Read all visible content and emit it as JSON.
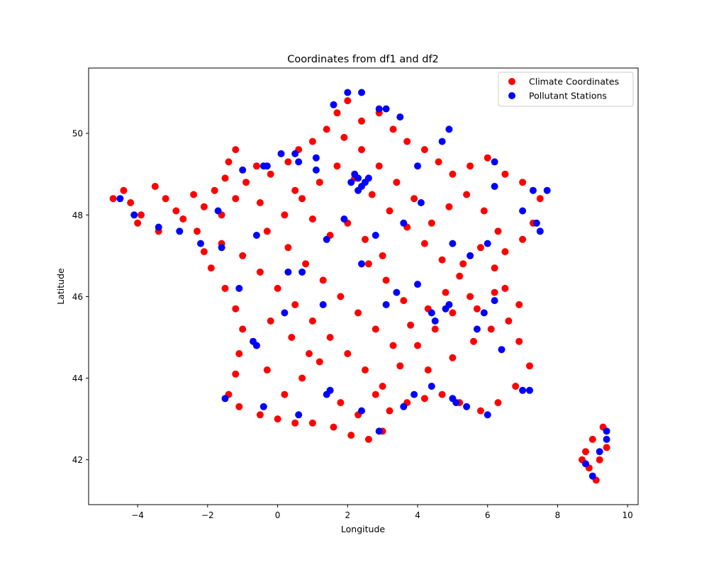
{
  "chart_data": {
    "type": "scatter",
    "title": "Coordinates from df1 and df2",
    "xlabel": "Longitude",
    "ylabel": "Latitude",
    "xlim": [
      -5.4,
      10.3
    ],
    "ylim": [
      40.9,
      51.6
    ],
    "xticks": [
      -4,
      -2,
      0,
      2,
      4,
      6,
      8,
      10
    ],
    "yticks": [
      42,
      44,
      46,
      48,
      50
    ],
    "grid": false,
    "legend_position": "top-right",
    "series": [
      {
        "name": "Climate Coordinates",
        "color": "#ff0000",
        "points": [
          [
            -4.7,
            48.4
          ],
          [
            -4.4,
            48.6
          ],
          [
            -4.2,
            48.3
          ],
          [
            -3.9,
            48.0
          ],
          [
            -4.0,
            47.8
          ],
          [
            -3.5,
            48.7
          ],
          [
            -3.2,
            48.4
          ],
          [
            -2.9,
            48.1
          ],
          [
            -3.4,
            47.6
          ],
          [
            -2.7,
            47.9
          ],
          [
            -2.4,
            48.5
          ],
          [
            -2.1,
            48.2
          ],
          [
            -1.8,
            48.6
          ],
          [
            -2.3,
            47.6
          ],
          [
            -1.6,
            48.0
          ],
          [
            -1.2,
            48.4
          ],
          [
            -0.9,
            48.8
          ],
          [
            -1.4,
            49.3
          ],
          [
            -1.2,
            49.6
          ],
          [
            -0.6,
            49.2
          ],
          [
            -0.2,
            49.0
          ],
          [
            0.3,
            49.3
          ],
          [
            0.6,
            49.6
          ],
          [
            1.0,
            49.8
          ],
          [
            1.4,
            50.1
          ],
          [
            1.7,
            50.5
          ],
          [
            2.0,
            50.8
          ],
          [
            2.4,
            50.3
          ],
          [
            2.9,
            50.5
          ],
          [
            3.3,
            50.1
          ],
          [
            3.7,
            49.8
          ],
          [
            4.2,
            49.6
          ],
          [
            4.6,
            49.3
          ],
          [
            5.0,
            49.0
          ],
          [
            5.5,
            49.2
          ],
          [
            6.0,
            49.4
          ],
          [
            6.5,
            49.0
          ],
          [
            7.0,
            48.8
          ],
          [
            7.5,
            48.4
          ],
          [
            7.3,
            47.8
          ],
          [
            7.0,
            47.4
          ],
          [
            6.5,
            47.1
          ],
          [
            6.2,
            46.7
          ],
          [
            6.5,
            46.2
          ],
          [
            6.9,
            45.8
          ],
          [
            6.6,
            45.4
          ],
          [
            6.9,
            44.9
          ],
          [
            7.2,
            44.3
          ],
          [
            6.8,
            43.8
          ],
          [
            6.3,
            43.4
          ],
          [
            5.8,
            43.2
          ],
          [
            5.2,
            43.4
          ],
          [
            4.7,
            43.6
          ],
          [
            4.2,
            43.5
          ],
          [
            3.7,
            43.4
          ],
          [
            3.2,
            43.2
          ],
          [
            3.0,
            42.7
          ],
          [
            2.6,
            42.5
          ],
          [
            2.1,
            42.6
          ],
          [
            1.6,
            42.8
          ],
          [
            1.0,
            42.9
          ],
          [
            0.5,
            42.9
          ],
          [
            0.0,
            43.0
          ],
          [
            -0.5,
            43.1
          ],
          [
            -1.1,
            43.3
          ],
          [
            -1.4,
            43.6
          ],
          [
            -1.2,
            44.1
          ],
          [
            -1.1,
            44.6
          ],
          [
            -1.0,
            45.2
          ],
          [
            -1.2,
            45.7
          ],
          [
            -1.5,
            46.2
          ],
          [
            -1.9,
            46.7
          ],
          [
            -2.1,
            47.1
          ],
          [
            -1.6,
            47.3
          ],
          [
            -1.0,
            47.0
          ],
          [
            -0.5,
            46.6
          ],
          [
            0.0,
            46.2
          ],
          [
            0.5,
            45.8
          ],
          [
            1.0,
            45.4
          ],
          [
            1.5,
            45.0
          ],
          [
            2.0,
            44.6
          ],
          [
            2.5,
            44.2
          ],
          [
            3.0,
            43.8
          ],
          [
            3.5,
            44.3
          ],
          [
            4.0,
            44.8
          ],
          [
            4.5,
            45.2
          ],
          [
            5.0,
            45.6
          ],
          [
            5.5,
            46.0
          ],
          [
            5.2,
            46.5
          ],
          [
            4.7,
            46.9
          ],
          [
            4.2,
            47.3
          ],
          [
            3.7,
            47.7
          ],
          [
            3.2,
            48.1
          ],
          [
            2.7,
            48.5
          ],
          [
            2.2,
            48.9
          ],
          [
            1.7,
            49.2
          ],
          [
            1.2,
            48.8
          ],
          [
            0.7,
            48.4
          ],
          [
            0.2,
            48.0
          ],
          [
            -0.3,
            47.6
          ],
          [
            0.3,
            47.2
          ],
          [
            0.8,
            46.8
          ],
          [
            1.3,
            46.4
          ],
          [
            1.8,
            46.0
          ],
          [
            2.3,
            45.6
          ],
          [
            2.8,
            45.2
          ],
          [
            3.3,
            44.8
          ],
          [
            3.8,
            45.3
          ],
          [
            4.3,
            45.7
          ],
          [
            4.8,
            46.1
          ],
          [
            5.3,
            46.8
          ],
          [
            5.8,
            47.2
          ],
          [
            6.3,
            47.6
          ],
          [
            5.9,
            48.1
          ],
          [
            5.4,
            48.5
          ],
          [
            4.9,
            48.2
          ],
          [
            4.4,
            47.8
          ],
          [
            3.9,
            48.4
          ],
          [
            3.4,
            48.8
          ],
          [
            2.9,
            49.2
          ],
          [
            2.4,
            49.6
          ],
          [
            1.9,
            49.9
          ],
          [
            3.0,
            47.0
          ],
          [
            2.5,
            47.4
          ],
          [
            2.0,
            47.8
          ],
          [
            1.5,
            47.5
          ],
          [
            1.0,
            47.9
          ],
          [
            0.5,
            48.6
          ],
          [
            -0.5,
            48.3
          ],
          [
            -1.5,
            48.9
          ],
          [
            1.2,
            44.4
          ],
          [
            0.7,
            44.0
          ],
          [
            0.2,
            43.6
          ],
          [
            -0.3,
            44.2
          ],
          [
            -0.6,
            44.8
          ],
          [
            -0.2,
            45.4
          ],
          [
            0.4,
            45.0
          ],
          [
            0.9,
            44.6
          ],
          [
            1.8,
            43.4
          ],
          [
            2.3,
            43.1
          ],
          [
            2.8,
            43.6
          ],
          [
            4.3,
            44.2
          ],
          [
            5.0,
            44.5
          ],
          [
            5.6,
            44.9
          ],
          [
            6.1,
            45.2
          ],
          [
            5.7,
            45.7
          ],
          [
            6.2,
            46.1
          ],
          [
            3.6,
            45.9
          ],
          [
            3.1,
            46.4
          ],
          [
            2.6,
            46.8
          ],
          [
            8.8,
            42.2
          ],
          [
            9.0,
            42.5
          ],
          [
            9.2,
            42.0
          ],
          [
            8.9,
            41.8
          ],
          [
            9.1,
            41.5
          ],
          [
            9.3,
            42.8
          ],
          [
            9.4,
            42.3
          ],
          [
            8.7,
            42.0
          ]
        ]
      },
      {
        "name": "Pollutant Stations",
        "color": "#0000ff",
        "points": [
          [
            -4.5,
            48.4
          ],
          [
            -4.1,
            48.0
          ],
          [
            -3.4,
            47.7
          ],
          [
            -2.8,
            47.6
          ],
          [
            -1.7,
            48.1
          ],
          [
            -1.6,
            47.2
          ],
          [
            -2.2,
            47.3
          ],
          [
            -1.1,
            46.2
          ],
          [
            -0.6,
            47.5
          ],
          [
            -0.4,
            49.2
          ],
          [
            0.1,
            49.5
          ],
          [
            0.5,
            49.5
          ],
          [
            1.1,
            49.4
          ],
          [
            2.1,
            48.8
          ],
          [
            2.3,
            48.9
          ],
          [
            2.4,
            48.7
          ],
          [
            2.5,
            48.8
          ],
          [
            2.2,
            49.0
          ],
          [
            2.6,
            48.9
          ],
          [
            2.3,
            48.6
          ],
          [
            2.0,
            51.0
          ],
          [
            2.4,
            51.0
          ],
          [
            1.6,
            50.7
          ],
          [
            2.9,
            50.6
          ],
          [
            3.1,
            50.6
          ],
          [
            3.5,
            50.4
          ],
          [
            4.9,
            50.1
          ],
          [
            4.0,
            49.2
          ],
          [
            4.7,
            49.8
          ],
          [
            6.2,
            49.3
          ],
          [
            6.2,
            48.7
          ],
          [
            7.3,
            48.6
          ],
          [
            7.7,
            48.6
          ],
          [
            7.0,
            48.1
          ],
          [
            7.4,
            47.8
          ],
          [
            7.5,
            47.6
          ],
          [
            6.0,
            47.3
          ],
          [
            5.0,
            47.3
          ],
          [
            4.8,
            45.7
          ],
          [
            4.9,
            45.8
          ],
          [
            4.5,
            45.4
          ],
          [
            5.7,
            45.2
          ],
          [
            5.9,
            45.6
          ],
          [
            6.2,
            45.9
          ],
          [
            6.4,
            44.7
          ],
          [
            7.0,
            43.7
          ],
          [
            7.2,
            43.7
          ],
          [
            6.0,
            43.1
          ],
          [
            5.4,
            43.3
          ],
          [
            5.1,
            43.4
          ],
          [
            5.0,
            43.5
          ],
          [
            4.4,
            43.8
          ],
          [
            3.9,
            43.6
          ],
          [
            3.6,
            43.3
          ],
          [
            2.9,
            42.7
          ],
          [
            2.4,
            43.2
          ],
          [
            1.4,
            43.6
          ],
          [
            1.5,
            43.7
          ],
          [
            0.6,
            43.1
          ],
          [
            -0.4,
            43.3
          ],
          [
            -1.5,
            43.5
          ],
          [
            -0.6,
            44.8
          ],
          [
            -0.7,
            44.9
          ],
          [
            0.2,
            45.6
          ],
          [
            1.3,
            45.8
          ],
          [
            0.7,
            46.6
          ],
          [
            0.3,
            46.6
          ],
          [
            1.4,
            47.4
          ],
          [
            1.9,
            47.9
          ],
          [
            2.4,
            46.8
          ],
          [
            3.1,
            45.8
          ],
          [
            3.4,
            46.1
          ],
          [
            4.0,
            46.3
          ],
          [
            4.4,
            45.6
          ],
          [
            5.5,
            47.0
          ],
          [
            4.1,
            48.3
          ],
          [
            3.6,
            47.8
          ],
          [
            2.8,
            47.5
          ],
          [
            1.1,
            49.1
          ],
          [
            0.6,
            49.3
          ],
          [
            -1.0,
            49.1
          ],
          [
            -0.3,
            49.2
          ],
          [
            9.4,
            42.7
          ],
          [
            9.2,
            42.2
          ],
          [
            8.8,
            41.9
          ],
          [
            9.0,
            41.6
          ],
          [
            9.4,
            42.5
          ]
        ]
      }
    ]
  }
}
